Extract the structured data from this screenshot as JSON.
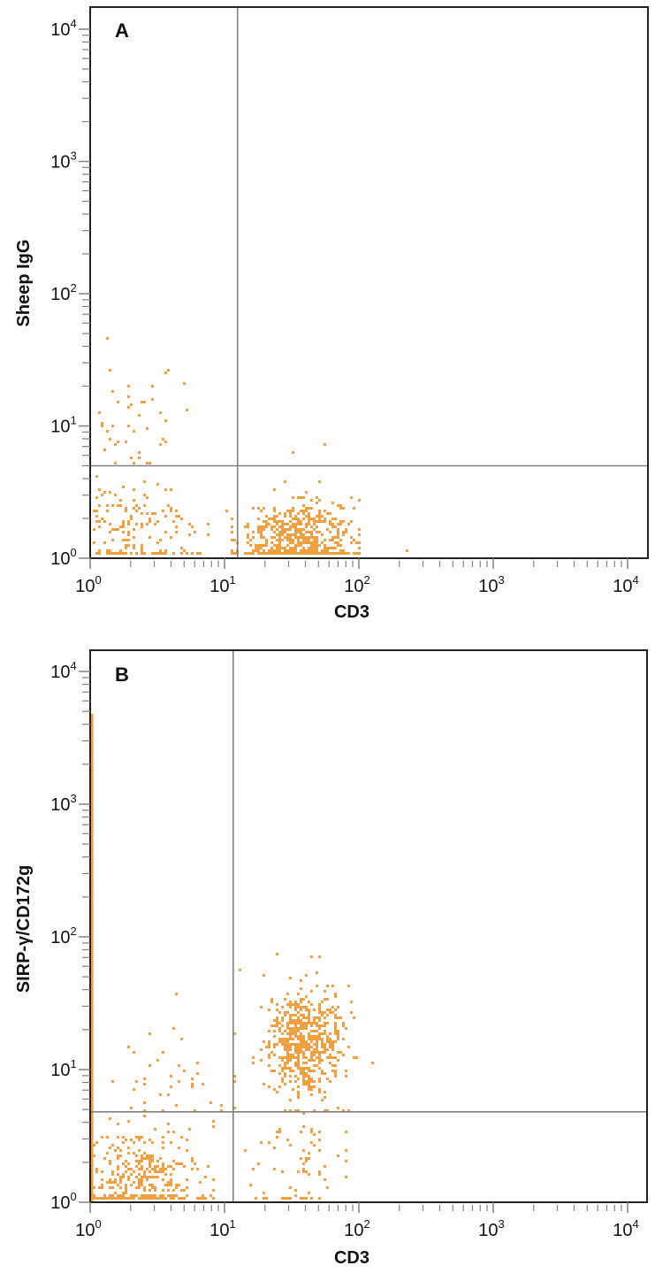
{
  "figure": {
    "dot_color": "#F0A040",
    "axis_color": "#222222",
    "gate_color": "#808080"
  },
  "chart_data": [
    {
      "type": "scatter",
      "panel_label": "A",
      "title": "",
      "xlabel": "CD3",
      "ylabel": "Sheep IgG",
      "xscale": "log",
      "yscale": "log",
      "xlim": [
        1,
        10000
      ],
      "ylim": [
        1,
        10000
      ],
      "x_tick_labels": [
        "10^0",
        "10^1",
        "10^2",
        "10^3",
        "10^4"
      ],
      "y_tick_labels": [
        "10^0",
        "10^1",
        "10^2",
        "10^3",
        "10^4"
      ],
      "grid": false,
      "legend": null,
      "quadrant_gates": {
        "x": 12.5,
        "y": 5.0
      },
      "populations": [
        {
          "name": "CD3+ / IgG- cluster",
          "x_log_center": 1.55,
          "y_log_center": 0.15,
          "x_log_spread": 0.22,
          "y_log_spread": 0.14,
          "count": 520,
          "x_log_range": [
            1.05,
            2.0
          ],
          "y_log_range": [
            0.0,
            0.6
          ]
        },
        {
          "name": "CD3- / IgG- scatter",
          "x_log_center": 0.3,
          "y_log_center": 0.25,
          "x_log_spread": 0.25,
          "y_log_spread": 0.18,
          "count": 150,
          "x_log_range": [
            0.0,
            1.0
          ],
          "y_log_range": [
            0.0,
            0.7
          ]
        },
        {
          "name": "CD3- / IgG+ scatter",
          "x_log_center": 0.3,
          "y_log_center": 0.95,
          "x_log_spread": 0.2,
          "y_log_spread": 0.2,
          "count": 40,
          "x_log_range": [
            0.0,
            0.85
          ],
          "y_log_range": [
            0.7,
            1.65
          ]
        }
      ],
      "outliers": [
        {
          "x": 1.3,
          "y": 44
        },
        {
          "x": 1.4,
          "y": 26
        },
        {
          "x": 3.5,
          "y": 25
        },
        {
          "x": 4.8,
          "y": 20
        },
        {
          "x": 55,
          "y": 7
        },
        {
          "x": 32,
          "y": 6.2
        },
        {
          "x": 220,
          "y": 1.1
        }
      ],
      "quadrant_percentages_visible": false
    },
    {
      "type": "scatter",
      "panel_label": "B",
      "title": "",
      "xlabel": "CD3",
      "ylabel": "SIRP-γ/CD172g",
      "xscale": "log",
      "yscale": "log",
      "xlim": [
        1,
        10000
      ],
      "ylim": [
        1,
        10000
      ],
      "x_tick_labels": [
        "10^0",
        "10^1",
        "10^2",
        "10^3",
        "10^4"
      ],
      "y_tick_labels": [
        "10^0",
        "10^1",
        "10^2",
        "10^3",
        "10^4"
      ],
      "grid": false,
      "legend": null,
      "quadrant_gates": {
        "x": 11.6,
        "y": 4.8
      },
      "populations": [
        {
          "name": "CD3+ / SIRP-γ+ cluster",
          "x_log_center": 1.58,
          "y_log_center": 1.2,
          "x_log_spread": 0.14,
          "y_log_spread": 0.2,
          "count": 620,
          "x_log_range": [
            1.15,
            2.05
          ],
          "y_log_range": [
            0.68,
            1.85
          ]
        },
        {
          "name": "CD3+ / SIRP-γ- scatter",
          "x_log_center": 1.55,
          "y_log_center": 0.35,
          "x_log_spread": 0.18,
          "y_log_spread": 0.2,
          "count": 60,
          "x_log_range": [
            1.1,
            1.9
          ],
          "y_log_range": [
            0.0,
            0.68
          ]
        },
        {
          "name": "CD3- / SIRP-γ- scatter",
          "x_log_center": 0.35,
          "y_log_center": 0.2,
          "x_log_spread": 0.22,
          "y_log_spread": 0.18,
          "count": 330,
          "x_log_range": [
            0.0,
            0.9
          ],
          "y_log_range": [
            0.0,
            0.68
          ]
        },
        {
          "name": "CD3- / SIRP-γ+ scatter",
          "x_log_center": 0.6,
          "y_log_center": 0.9,
          "x_log_spread": 0.25,
          "y_log_spread": 0.2,
          "count": 40,
          "x_log_range": [
            0.0,
            1.06
          ],
          "y_log_range": [
            0.68,
            1.6
          ]
        }
      ],
      "axis_saturation_strip": {
        "x": 1,
        "y_from": 1,
        "y_to": 4800
      },
      "outliers": [
        {
          "x": 24,
          "y": 72
        },
        {
          "x": 13,
          "y": 55
        },
        {
          "x": 125,
          "y": 11
        },
        {
          "x": 4.2,
          "y": 36
        },
        {
          "x": 80,
          "y": 2.4
        }
      ],
      "quadrant_percentages_visible": false
    }
  ],
  "panels": [
    {
      "label": "A",
      "xlabel": "CD3",
      "ylabel": "Sheep IgG",
      "x_ticks": [
        {
          "base": "10",
          "exp": "0"
        },
        {
          "base": "10",
          "exp": "1"
        },
        {
          "base": "10",
          "exp": "2"
        },
        {
          "base": "10",
          "exp": "3"
        },
        {
          "base": "10",
          "exp": "4"
        }
      ],
      "y_ticks": [
        {
          "base": "10",
          "exp": "0"
        },
        {
          "base": "10",
          "exp": "1"
        },
        {
          "base": "10",
          "exp": "2"
        },
        {
          "base": "10",
          "exp": "3"
        },
        {
          "base": "10",
          "exp": "4"
        }
      ]
    },
    {
      "label": "B",
      "xlabel": "CD3",
      "ylabel": "SIRP-γ/CD172g",
      "x_ticks": [
        {
          "base": "10",
          "exp": "0"
        },
        {
          "base": "10",
          "exp": "1"
        },
        {
          "base": "10",
          "exp": "2"
        },
        {
          "base": "10",
          "exp": "3"
        },
        {
          "base": "10",
          "exp": "4"
        }
      ],
      "y_ticks": [
        {
          "base": "10",
          "exp": "0"
        },
        {
          "base": "10",
          "exp": "1"
        },
        {
          "base": "10",
          "exp": "2"
        },
        {
          "base": "10",
          "exp": "3"
        },
        {
          "base": "10",
          "exp": "4"
        }
      ]
    }
  ]
}
